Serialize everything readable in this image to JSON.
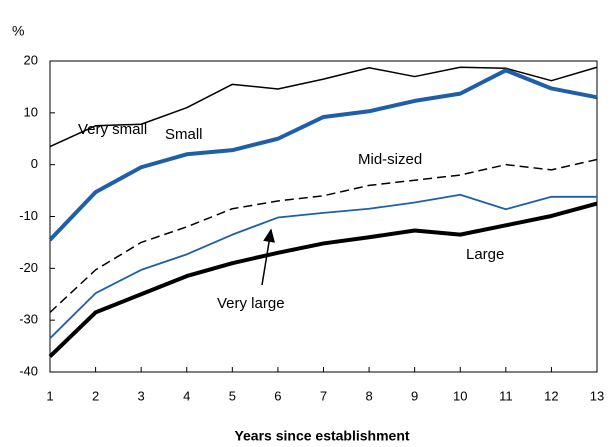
{
  "chart_data": {
    "type": "line",
    "y_unit_label": "%",
    "xlabel": "Years since establishment",
    "x": [
      1,
      2,
      3,
      4,
      5,
      6,
      7,
      8,
      9,
      10,
      11,
      12,
      13
    ],
    "xlim": [
      1,
      13
    ],
    "xticks": [
      1,
      2,
      3,
      4,
      5,
      6,
      7,
      8,
      9,
      10,
      11,
      12,
      13
    ],
    "ylim": [
      -40,
      20
    ],
    "yticks": [
      -40,
      -30,
      -20,
      -10,
      0,
      10,
      20
    ],
    "series": [
      {
        "name": "Very small",
        "color": "#000000",
        "width": 1.5,
        "dashed": false,
        "values": [
          3.5,
          7.5,
          7.8,
          11,
          15.5,
          14.6,
          16.5,
          18.7,
          17,
          18.8,
          18.6,
          16.2,
          18.8
        ]
      },
      {
        "name": "Small",
        "color": "#1f5fa8",
        "width": 4,
        "dashed": false,
        "values": [
          -14.5,
          -5.3,
          -0.5,
          2,
          2.8,
          5,
          9.2,
          10.3,
          12.3,
          13.7,
          18.2,
          14.7,
          13
        ]
      },
      {
        "name": "Mid-sized",
        "color": "#000000",
        "width": 1.5,
        "dashed": true,
        "values": [
          -28.5,
          -20.3,
          -15,
          -12,
          -8.5,
          -7,
          -6,
          -4,
          -3,
          -2,
          0,
          -1,
          1
        ]
      },
      {
        "name": "Large",
        "color": "#1f5fa8",
        "width": 1.8,
        "dashed": false,
        "values": [
          -33.5,
          -24.8,
          -20.3,
          -17.3,
          -13.5,
          -10.2,
          -9.3,
          -8.5,
          -7.3,
          -5.8,
          -8.6,
          -6.2,
          -6.2
        ]
      },
      {
        "name": "Very large",
        "color": "#000000",
        "width": 4,
        "dashed": false,
        "values": [
          -37,
          -28.5,
          -25,
          -21.5,
          -19,
          -17,
          -15.2,
          -14,
          -12.7,
          -13.5,
          -11.7,
          -9.9,
          -7.5
        ]
      }
    ]
  }
}
